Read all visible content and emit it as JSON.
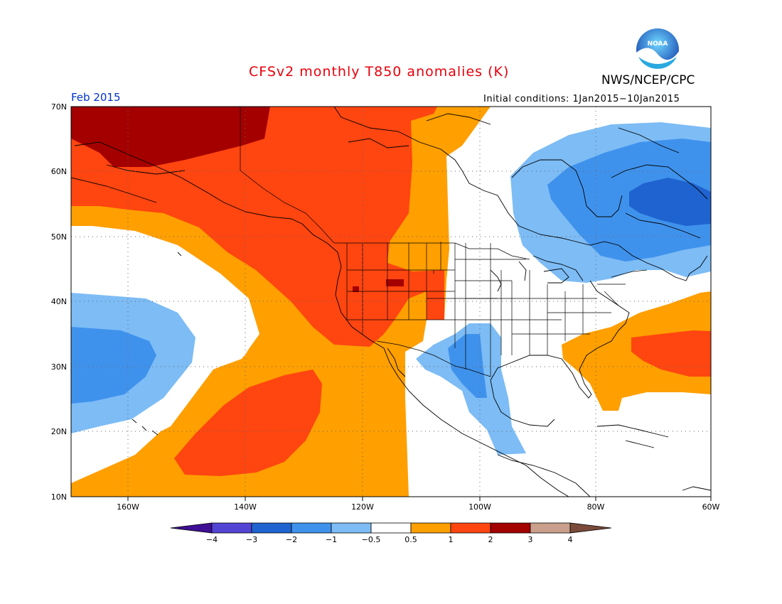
{
  "header": {
    "title": "CFSv2 monthly T850 anomalies (K)",
    "agency": "NWS/NCEP/CPC",
    "logo_text": "NOAA",
    "period": "Feb 2015",
    "initial_conditions": "Initial conditions: 1Jan2015−10Jan2015"
  },
  "map": {
    "lat_labels": [
      "70N",
      "60N",
      "50N",
      "40N",
      "30N",
      "20N",
      "10N"
    ],
    "lon_labels": [
      "160W",
      "140W",
      "120W",
      "100W",
      "80W",
      "60W"
    ],
    "region": "North America / Northeast Pacific"
  },
  "legend": {
    "tick_labels": [
      "−4",
      "−3",
      "−2",
      "−1",
      "−0.5",
      "0.5",
      "1",
      "2",
      "3",
      "4"
    ],
    "bins": [
      {
        "range": "< -4",
        "color": "#3f0f96"
      },
      {
        "range": "-4 to -3",
        "color": "#5245d4"
      },
      {
        "range": "-3 to -2",
        "color": "#1f63d0"
      },
      {
        "range": "-2 to -1",
        "color": "#3f92ec"
      },
      {
        "range": "-1 to -0.5",
        "color": "#7dbcf5"
      },
      {
        "range": "-0.5 to 0.5",
        "color": "#ffffff"
      },
      {
        "range": "0.5 to 1",
        "color": "#ff9f00"
      },
      {
        "range": "1 to 2",
        "color": "#ff4510"
      },
      {
        "range": "2 to 3",
        "color": "#a40000"
      },
      {
        "range": "3 to 4",
        "color": "#caa08c"
      },
      {
        "range": "> 4",
        "color": "#7a4a3a"
      }
    ]
  }
}
